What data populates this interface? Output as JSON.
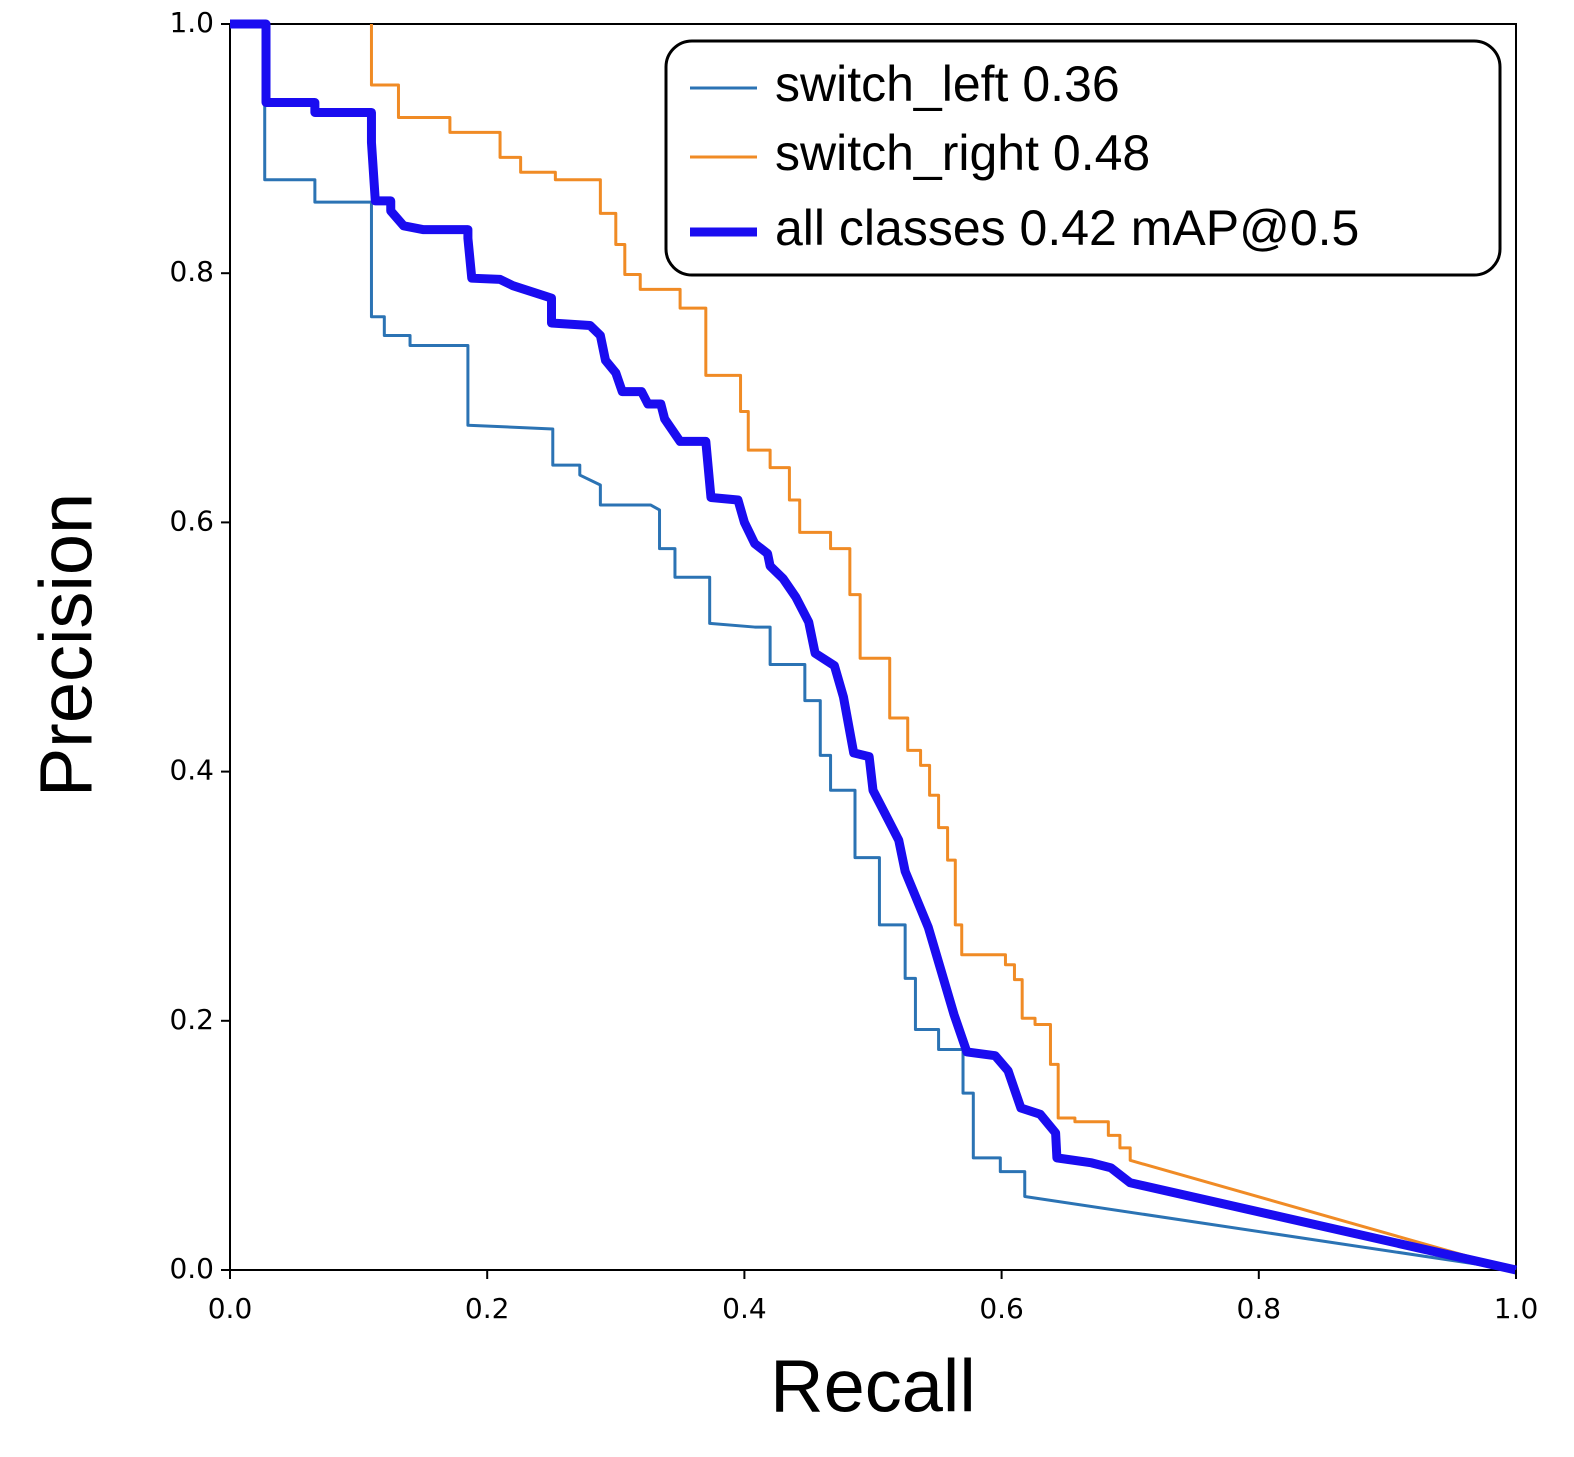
{
  "chart_data": {
    "type": "line",
    "xlabel": "Recall",
    "ylabel": "Precision",
    "xlim": [
      0,
      1
    ],
    "ylim": [
      0,
      1
    ],
    "xticks": [
      {
        "value": 0,
        "label": "0.0"
      },
      0.2,
      0.4,
      0.6,
      0.8,
      {
        "value": 1,
        "label": "1.0"
      }
    ],
    "yticks": [
      {
        "value": 0,
        "label": "0.0"
      },
      0.2,
      0.4,
      0.6,
      0.8,
      {
        "value": 1,
        "label": "1.0"
      }
    ],
    "legend": "upper right",
    "series": [
      {
        "name": "switch_left 0.36",
        "color": "#2b73b4",
        "width": 3,
        "x": [
          0,
          0.027,
          0.027,
          0.066,
          0.066,
          0.11,
          0.11,
          0.12,
          0.12,
          0.14,
          0.14,
          0.185,
          0.185,
          0.251,
          0.251,
          0.272,
          0.272,
          0.288,
          0.288,
          0.327,
          0.334,
          0.334,
          0.346,
          0.346,
          0.373,
          0.373,
          0.408,
          0.42,
          0.42,
          0.447,
          0.447,
          0.459,
          0.459,
          0.467,
          0.467,
          0.486,
          0.486,
          0.505,
          0.505,
          0.525,
          0.525,
          0.533,
          0.533,
          0.551,
          0.551,
          0.57,
          0.57,
          0.578,
          0.578,
          0.599,
          0.599,
          0.618,
          0.618,
          1.0
        ],
        "values": [
          1,
          1,
          0.875,
          0.875,
          0.857,
          0.857,
          0.765,
          0.765,
          0.75,
          0.75,
          0.742,
          0.742,
          0.678,
          0.675,
          0.646,
          0.646,
          0.638,
          0.63,
          0.614,
          0.614,
          0.61,
          0.579,
          0.579,
          0.556,
          0.556,
          0.519,
          0.516,
          0.516,
          0.486,
          0.486,
          0.457,
          0.457,
          0.413,
          0.413,
          0.385,
          0.385,
          0.331,
          0.331,
          0.277,
          0.277,
          0.234,
          0.234,
          0.193,
          0.193,
          0.177,
          0.177,
          0.142,
          0.142,
          0.09,
          0.09,
          0.079,
          0.079,
          0.059,
          0
        ]
      },
      {
        "name": "switch_right 0.48",
        "color": "#f08b25",
        "width": 3,
        "x": [
          0.11,
          0.11,
          0.131,
          0.131,
          0.171,
          0.171,
          0.21,
          0.21,
          0.226,
          0.226,
          0.253,
          0.253,
          0.288,
          0.288,
          0.3,
          0.3,
          0.307,
          0.307,
          0.319,
          0.319,
          0.35,
          0.35,
          0.37,
          0.37,
          0.397,
          0.397,
          0.403,
          0.403,
          0.42,
          0.42,
          0.435,
          0.435,
          0.443,
          0.443,
          0.467,
          0.467,
          0.482,
          0.482,
          0.49,
          0.49,
          0.513,
          0.513,
          0.527,
          0.527,
          0.537,
          0.537,
          0.544,
          0.544,
          0.551,
          0.551,
          0.558,
          0.558,
          0.564,
          0.564,
          0.569,
          0.569,
          0.603,
          0.603,
          0.61,
          0.61,
          0.616,
          0.616,
          0.626,
          0.626,
          0.638,
          0.638,
          0.644,
          0.644,
          0.657,
          0.657,
          0.683,
          0.683,
          0.692,
          0.692,
          0.7,
          0.7,
          1.0
        ],
        "values": [
          1.0,
          0.951,
          0.951,
          0.925,
          0.925,
          0.913,
          0.913,
          0.893,
          0.893,
          0.881,
          0.881,
          0.875,
          0.875,
          0.848,
          0.848,
          0.823,
          0.823,
          0.799,
          0.799,
          0.787,
          0.787,
          0.772,
          0.772,
          0.718,
          0.718,
          0.689,
          0.689,
          0.658,
          0.658,
          0.644,
          0.644,
          0.618,
          0.618,
          0.592,
          0.592,
          0.579,
          0.579,
          0.542,
          0.542,
          0.491,
          0.491,
          0.443,
          0.443,
          0.417,
          0.417,
          0.405,
          0.405,
          0.381,
          0.381,
          0.355,
          0.355,
          0.329,
          0.329,
          0.277,
          0.277,
          0.253,
          0.253,
          0.245,
          0.245,
          0.233,
          0.233,
          0.202,
          0.202,
          0.197,
          0.197,
          0.165,
          0.165,
          0.122,
          0.122,
          0.119,
          0.119,
          0.108,
          0.108,
          0.098,
          0.098,
          0.088,
          0
        ]
      },
      {
        "name": "all classes 0.42 mAP@0.5",
        "color": "#1a0cf0",
        "width": 9,
        "x": [
          0,
          0.028,
          0.028,
          0.066,
          0.066,
          0.11,
          0.11,
          0.113,
          0.125,
          0.125,
          0.135,
          0.15,
          0.185,
          0.185,
          0.188,
          0.21,
          0.22,
          0.25,
          0.25,
          0.28,
          0.288,
          0.292,
          0.3,
          0.305,
          0.32,
          0.325,
          0.335,
          0.338,
          0.35,
          0.37,
          0.374,
          0.395,
          0.4,
          0.408,
          0.418,
          0.42,
          0.43,
          0.44,
          0.45,
          0.455,
          0.47,
          0.477,
          0.485,
          0.497,
          0.5,
          0.51,
          0.52,
          0.525,
          0.533,
          0.543,
          0.553,
          0.563,
          0.573,
          0.595,
          0.605,
          0.615,
          0.63,
          0.642,
          0.643,
          0.67,
          0.685,
          0.7,
          1.0
        ],
        "values": [
          1,
          1,
          0.937,
          0.937,
          0.929,
          0.929,
          0.905,
          0.858,
          0.858,
          0.85,
          0.838,
          0.835,
          0.835,
          0.828,
          0.796,
          0.795,
          0.79,
          0.78,
          0.76,
          0.758,
          0.75,
          0.73,
          0.72,
          0.705,
          0.705,
          0.695,
          0.695,
          0.683,
          0.665,
          0.665,
          0.62,
          0.618,
          0.6,
          0.583,
          0.575,
          0.565,
          0.555,
          0.54,
          0.52,
          0.495,
          0.485,
          0.46,
          0.415,
          0.412,
          0.385,
          0.365,
          0.345,
          0.32,
          0.3,
          0.275,
          0.24,
          0.205,
          0.175,
          0.172,
          0.16,
          0.13,
          0.125,
          0.11,
          0.09,
          0.086,
          0.082,
          0.07,
          0
        ]
      }
    ]
  }
}
